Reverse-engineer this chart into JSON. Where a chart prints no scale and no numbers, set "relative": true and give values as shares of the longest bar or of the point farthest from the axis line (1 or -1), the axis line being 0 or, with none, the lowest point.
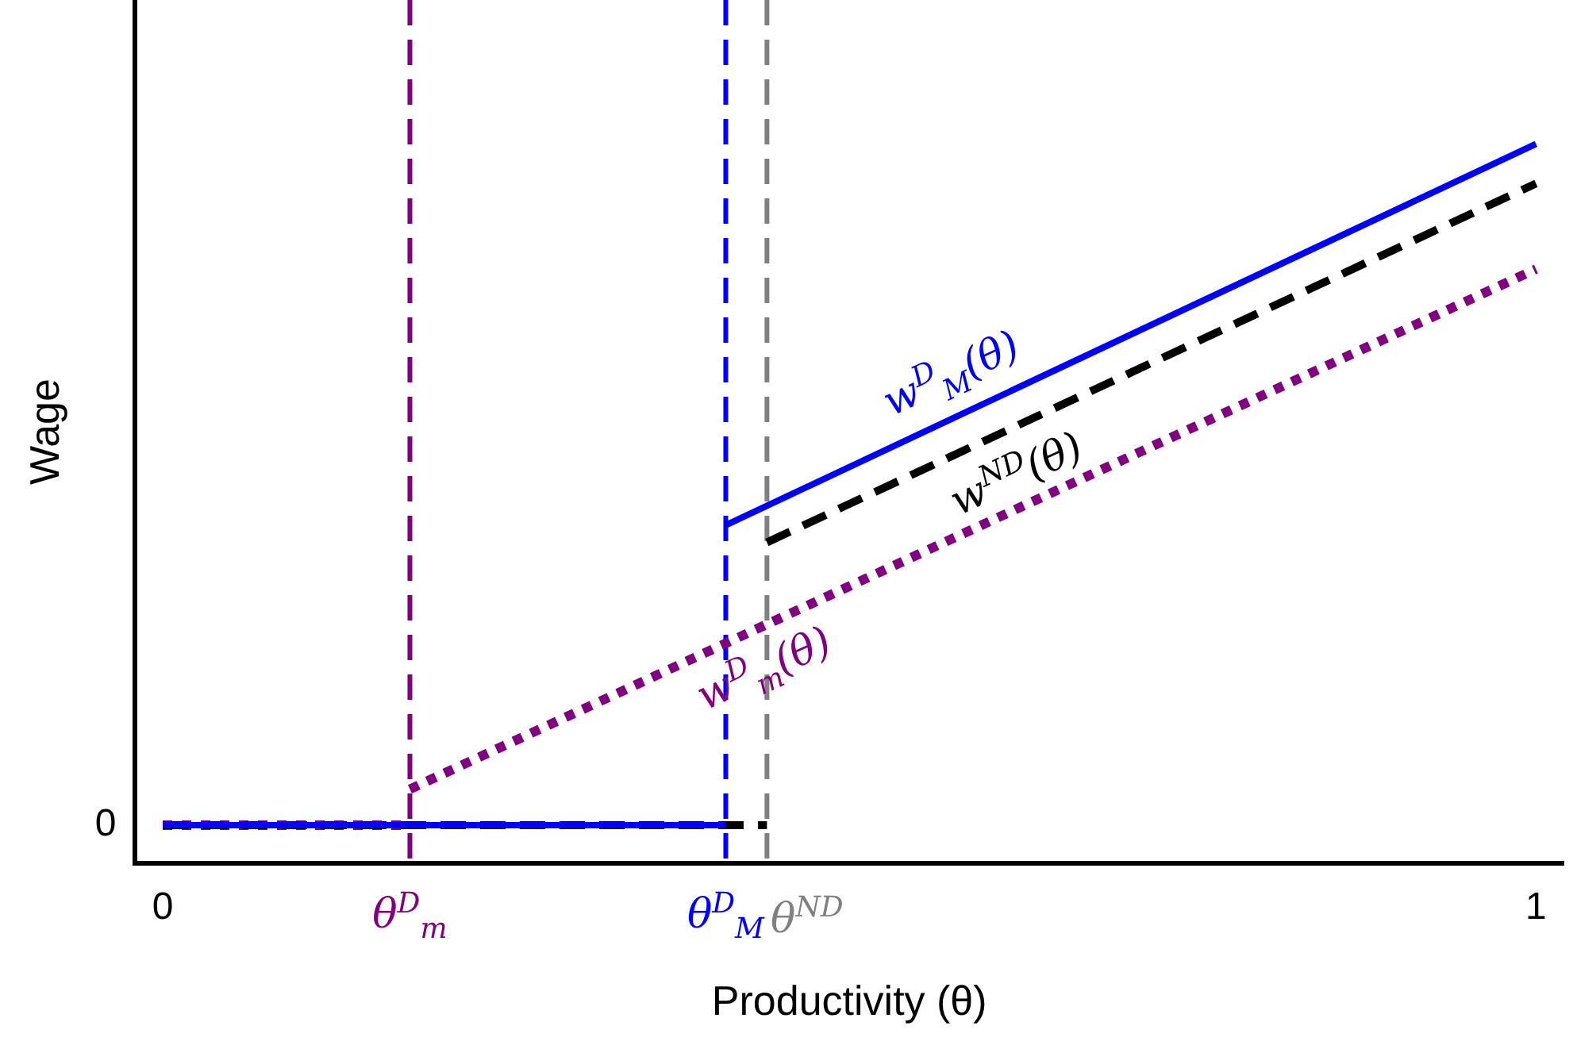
{
  "chart_data": {
    "type": "line",
    "xlabel": "Productivity (θ)",
    "ylabel": "Wage",
    "relative": true,
    "xlim": [
      -0.02,
      1.02
    ],
    "xticks": [
      0,
      1
    ],
    "legend": false,
    "grid": false,
    "marker": "none",
    "series": [
      {
        "name": "w$^{D}$$_{M}$(θ)",
        "color": "#0000ff",
        "line_style": "solid",
        "x": [
          0,
          0.41,
          null,
          0.41,
          1
        ],
        "values": [
          0.053,
          0.053,
          null,
          0.47,
          1
        ]
      },
      {
        "name": "w$^{ND}$(θ)",
        "color": "#000000",
        "line_style": "dashed",
        "x": [
          0,
          0.44,
          null,
          0.44,
          1
        ],
        "values": [
          0.053,
          0.053,
          null,
          0.446,
          0.945
        ]
      },
      {
        "name": "w$^{D}$$_{m}$(θ)",
        "color": "#800080",
        "line_style": "dotted",
        "x": [
          0,
          0.18,
          null,
          0.18,
          1
        ],
        "values": [
          0.053,
          0.053,
          null,
          0.103,
          0.826
        ]
      }
    ],
    "ref_lines": [
      {
        "axis": "x",
        "value": 0.18,
        "label": "θ$^{D}$$_{m}$",
        "color": "#800080",
        "line_style": "dashed"
      },
      {
        "axis": "x",
        "value": 0.41,
        "label": "θ$^{D}$$_{M}$",
        "color": "#0000ff",
        "line_style": "dashed"
      },
      {
        "axis": "x",
        "value": 0.44,
        "label": "θ$^{ND}$",
        "color": "#808080",
        "line_style": "dashed"
      }
    ],
    "annotations": [
      "0"
    ]
  }
}
